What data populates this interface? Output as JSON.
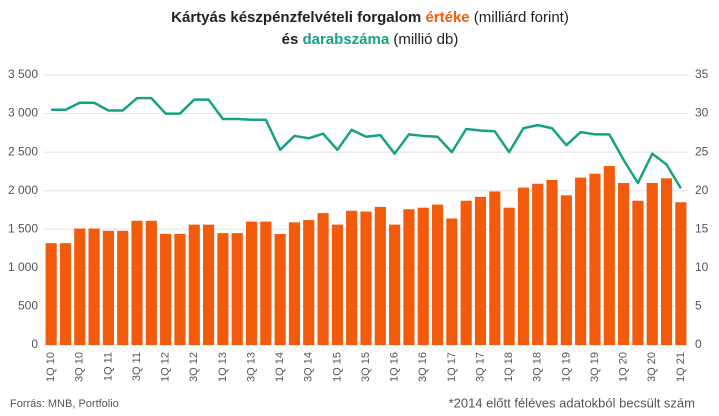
{
  "chart_data": {
    "type": "bar-line",
    "title_lines": [
      [
        {
          "text": "Kártyás készpénzfelvételi forgalom ",
          "bold": true
        },
        {
          "text": "értéke",
          "bold": true,
          "color": "#f25a0c"
        },
        {
          "text": " (milliárd forint)",
          "bold": false
        }
      ],
      [
        {
          "text": "és ",
          "bold": true
        },
        {
          "text": "darabszáma",
          "bold": true,
          "color": "#17a382"
        },
        {
          "text": " (millió db)",
          "bold": false
        }
      ]
    ],
    "categories": [
      "1Q 10",
      null,
      "3Q 10",
      null,
      "1Q 11",
      null,
      "3Q 11",
      null,
      "1Q 12",
      null,
      "3Q 12",
      null,
      "1Q 13",
      null,
      "3Q 13",
      null,
      "1Q 14",
      null,
      "3Q 14",
      null,
      "1Q 15",
      null,
      "3Q 15",
      null,
      "1Q 16",
      null,
      "3Q 16",
      null,
      "1Q 17",
      null,
      "3Q 17",
      null,
      "1Q 18",
      null,
      "3Q 18",
      null,
      "1Q 19",
      null,
      "3Q 19",
      null,
      "1Q 20",
      null,
      "3Q 20",
      null,
      "1Q 21"
    ],
    "series": [
      {
        "type": "bar",
        "color": "#f25a0c",
        "values": [
          1320,
          1320,
          1510,
          1510,
          1480,
          1480,
          1610,
          1610,
          1440,
          1440,
          1560,
          1560,
          1450,
          1450,
          1600,
          1600,
          1440,
          1590,
          1620,
          1710,
          1560,
          1740,
          1730,
          1790,
          1560,
          1760,
          1780,
          1820,
          1640,
          1870,
          1920,
          1990,
          1780,
          2040,
          2090,
          2140,
          1940,
          2170,
          2220,
          2320,
          2100,
          1870,
          2100,
          2160,
          1850
        ]
      },
      {
        "type": "line",
        "axis": "y2",
        "color": "#17a382",
        "values": [
          30.5,
          30.5,
          31.4,
          31.4,
          30.4,
          30.4,
          32,
          32,
          30,
          30,
          31.8,
          31.8,
          29.3,
          29.3,
          29.2,
          29.2,
          25.3,
          27.1,
          26.8,
          27.4,
          25.3,
          27.9,
          27,
          27.2,
          24.8,
          27.3,
          27.1,
          27,
          25,
          28,
          27.8,
          27.7,
          25,
          28.1,
          28.5,
          28.1,
          25.9,
          27.6,
          27.3,
          27.3,
          24,
          21,
          24.8,
          23.4,
          20.3
        ]
      }
    ],
    "ylim": [
      0,
      3500
    ],
    "yticks": [
      0,
      500,
      {
        "value": 1000,
        "label": "1 000"
      },
      {
        "value": 1500,
        "label": "1 500"
      },
      {
        "value": 2000,
        "label": "2 000"
      },
      {
        "value": 2500,
        "label": "2 500"
      },
      {
        "value": 3000,
        "label": "3 000"
      },
      {
        "value": 3500,
        "label": "3 500"
      }
    ],
    "y2lim": [
      0,
      35
    ],
    "y2ticks": [
      0,
      5,
      10,
      15,
      20,
      25,
      30,
      35
    ],
    "grid": true,
    "source": "Forrás: MNB, Portfolio",
    "note": "*2014 előtt féléves adatokból becsült szám"
  }
}
